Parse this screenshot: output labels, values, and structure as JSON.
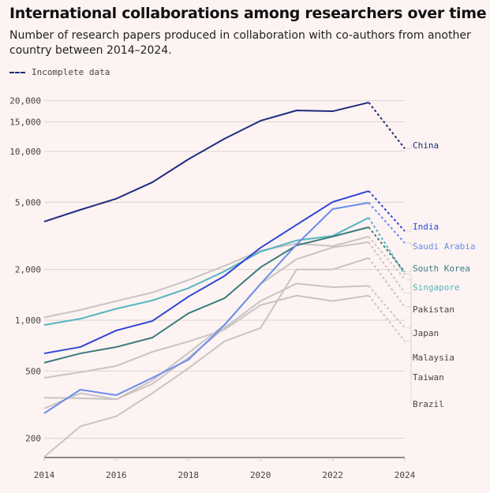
{
  "chart_data": {
    "type": "line",
    "title": "International collaborations among researchers over time",
    "subtitle": "Number of research papers produced in collaboration with co-authors from another country between 2014–2024.",
    "legend": {
      "incomplete_label": "Incomplete data",
      "placement": "top-left"
    },
    "xlabel": "",
    "ylabel": "",
    "y_scale": "log",
    "ylim": [
      155,
      21000
    ],
    "x": [
      2014,
      2015,
      2016,
      2017,
      2018,
      2019,
      2020,
      2021,
      2022,
      2023,
      2024
    ],
    "x_ticks": [
      "2014",
      "2016",
      "2018",
      "2020",
      "2022",
      "2024"
    ],
    "y_ticks": [
      {
        "value": 20000,
        "label": "20,000"
      },
      {
        "value": 15000,
        "label": "15,000"
      },
      {
        "value": 10000,
        "label": "10,000"
      },
      {
        "value": 5000,
        "label": "5,000"
      },
      {
        "value": 2000,
        "label": "2,000"
      },
      {
        "value": 1000,
        "label": "1,000"
      },
      {
        "value": 500,
        "label": "500"
      },
      {
        "value": 200,
        "label": "200"
      }
    ],
    "incomplete_from": 2023,
    "grid": true,
    "series": [
      {
        "name": "Brazil",
        "color": "#c9c4c4",
        "values": [
          155,
          235,
          270,
          370,
          520,
          750,
          900,
          2000,
          2000,
          2340,
          1200
        ]
      },
      {
        "name": "Taiwan",
        "color": "#c9c4c4",
        "values": [
          300,
          370,
          340,
          440,
          640,
          940,
          1640,
          2300,
          2700,
          2900,
          1450
        ]
      },
      {
        "name": "Malaysia",
        "color": "#c9c4c4",
        "values": [
          348,
          345,
          340,
          420,
          600,
          900,
          1300,
          1650,
          1570,
          1600,
          900
        ]
      },
      {
        "name": "Japan",
        "color": "#c9c4c4",
        "values": [
          456,
          492,
          536,
          650,
          748,
          879,
          1230,
          1400,
          1300,
          1400,
          750
        ]
      },
      {
        "name": "Pakistan",
        "color": "#c9c4c4",
        "values": [
          1040,
          1150,
          1300,
          1460,
          1730,
          2100,
          2580,
          2850,
          2750,
          3130,
          1750
        ]
      },
      {
        "name": "Singapore",
        "color": "#54b5c0",
        "values": [
          937,
          1020,
          1170,
          1310,
          1550,
          1950,
          2550,
          2970,
          3160,
          4050,
          1870
        ]
      },
      {
        "name": "South Korea",
        "color": "#3a7b7e",
        "values": [
          560,
          636,
          694,
          789,
          1100,
          1350,
          2060,
          2780,
          3130,
          3560,
          1930
        ]
      },
      {
        "name": "Saudi Arabia",
        "color": "#6b8cea",
        "values": [
          281,
          388,
          360,
          456,
          584,
          937,
          1640,
          2810,
          4560,
          4970,
          2870
        ]
      },
      {
        "name": "India",
        "color": "#2e45d8",
        "values": [
          636,
          694,
          870,
          990,
          1380,
          1830,
          2690,
          3680,
          5020,
          5830,
          3370
        ]
      },
      {
        "name": "China",
        "color": "#1f2a7e",
        "values": [
          3840,
          4510,
          5250,
          6570,
          8990,
          11900,
          15200,
          17500,
          17300,
          19500,
          10400
        ]
      }
    ]
  }
}
